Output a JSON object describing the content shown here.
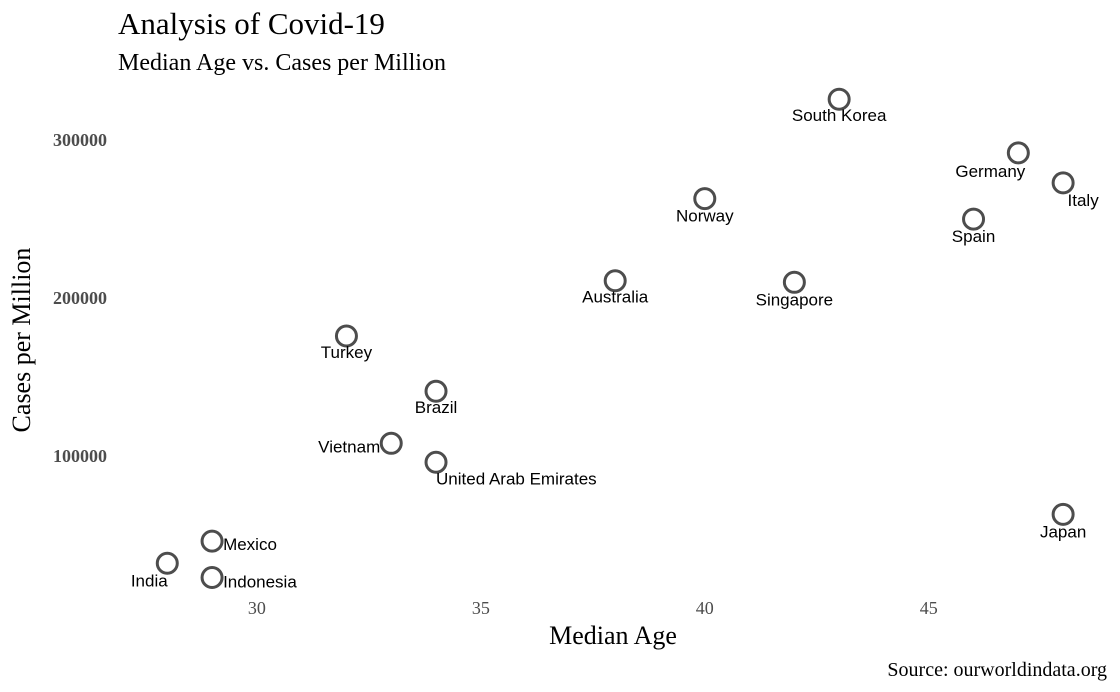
{
  "chart_data": {
    "type": "scatter",
    "title": "Analysis of Covid-19",
    "subtitle": "Median Age vs. Cases per Million",
    "xlabel": "Median Age",
    "ylabel": "Cases per Million",
    "caption": "Source: ourworldindata.org",
    "xlim": [
      26.9,
      48.6
    ],
    "ylim": [
      10000,
      335000
    ],
    "xticks": [
      30,
      35,
      40,
      45
    ],
    "yticks": [
      100000,
      200000,
      300000
    ],
    "xtick_labels": [
      "30",
      "35",
      "40",
      "45"
    ],
    "ytick_labels": [
      "100000",
      "200000",
      "300000"
    ],
    "grid": false,
    "point_color": "#4d4d4d",
    "points": [
      {
        "label": "South Korea",
        "x": 43,
        "y": 326000
      },
      {
        "label": "Germany",
        "x": 47,
        "y": 292000
      },
      {
        "label": "Italy",
        "x": 48,
        "y": 273000
      },
      {
        "label": "Norway",
        "x": 40,
        "y": 263000
      },
      {
        "label": "Spain",
        "x": 46,
        "y": 250000
      },
      {
        "label": "Australia",
        "x": 38,
        "y": 211000
      },
      {
        "label": "Singapore",
        "x": 42,
        "y": 210000
      },
      {
        "label": "Turkey",
        "x": 32,
        "y": 176000
      },
      {
        "label": "Brazil",
        "x": 34,
        "y": 141000
      },
      {
        "label": "Vietnam",
        "x": 33,
        "y": 108000
      },
      {
        "label": "United Arab Emirates",
        "x": 34,
        "y": 96000
      },
      {
        "label": "Japan",
        "x": 48,
        "y": 63000
      },
      {
        "label": "Mexico",
        "x": 29,
        "y": 46000
      },
      {
        "label": "India",
        "x": 28,
        "y": 32000
      },
      {
        "label": "Indonesia",
        "x": 29,
        "y": 23000
      }
    ]
  }
}
